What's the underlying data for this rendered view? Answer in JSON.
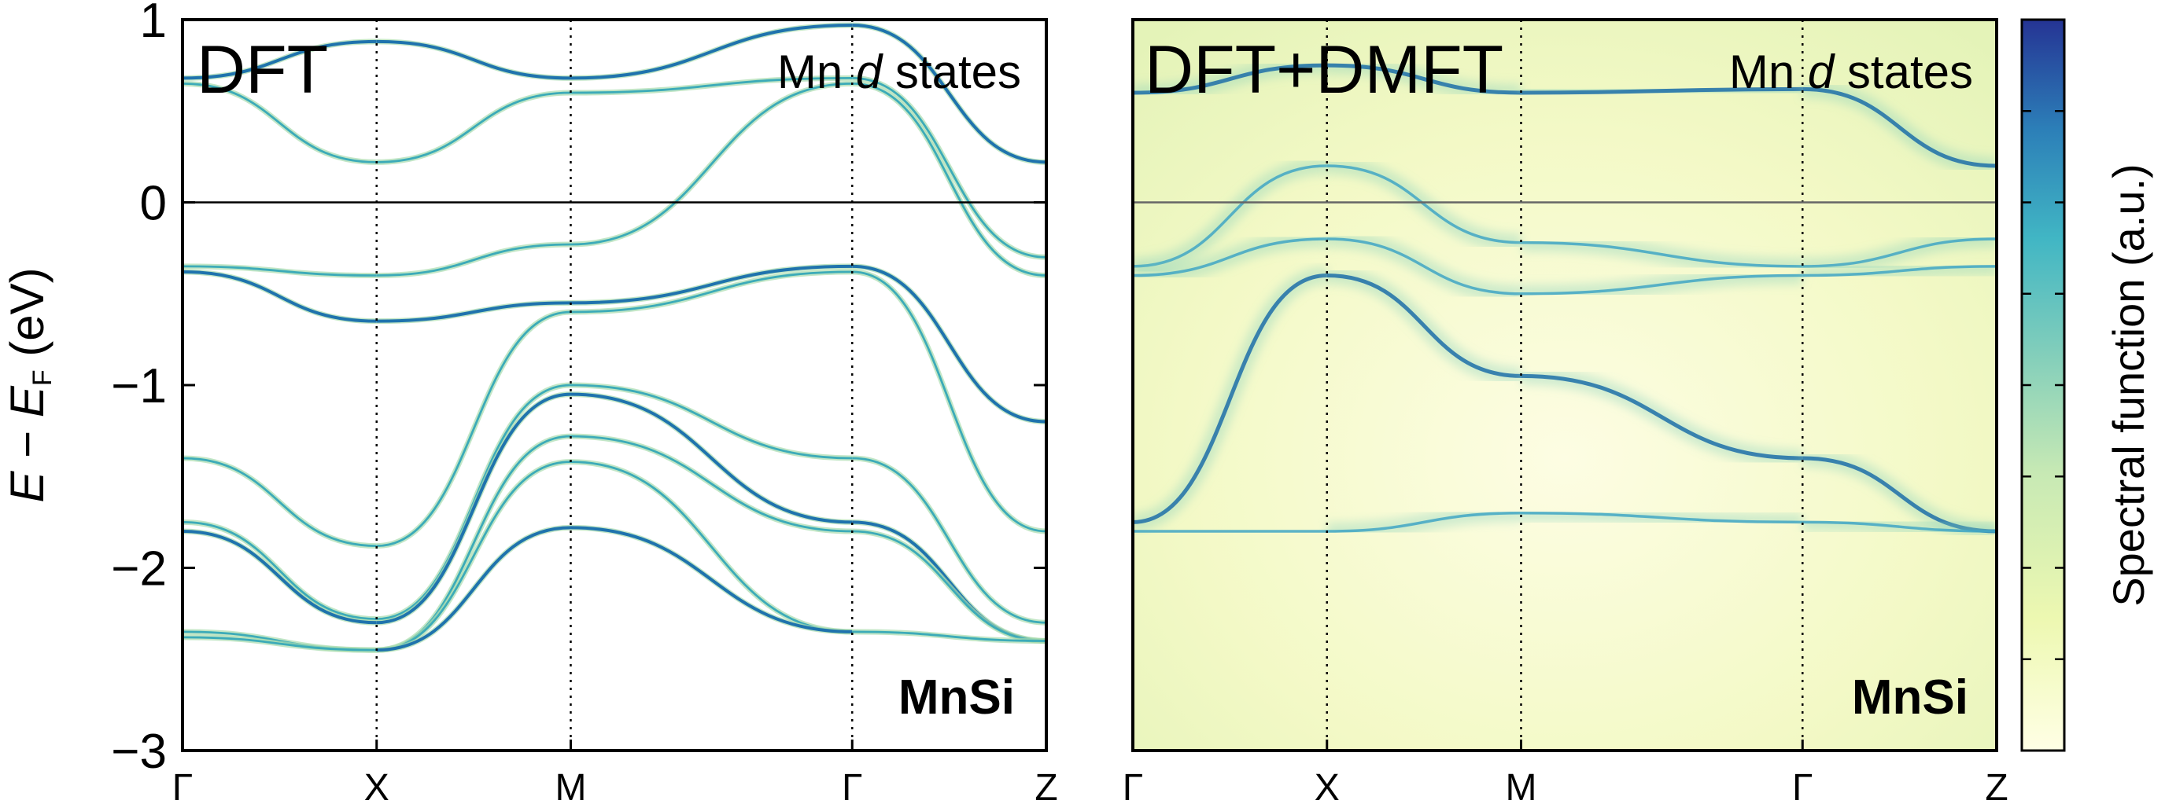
{
  "figure": {
    "ylabel_E": "E",
    "ylabel_minus": " − ",
    "ylabel_E2": "E",
    "ylabel_sub": "F",
    "ylabel_unit": " (eV)",
    "colorbar_label": "Spectral function (a.u.)",
    "colors": {
      "low": "#ffffe5",
      "mid": "#7fcdbb",
      "mid2": "#41b6c4",
      "high": "#225ea8",
      "max": "#253494",
      "axis": "#000000"
    }
  },
  "chart_data": [
    {
      "type": "heatmap",
      "panel": "left",
      "method_label": "DFT",
      "states_prefix": "Mn ",
      "states_italic": "d",
      "states_suffix": " states",
      "material_label": "MnSi",
      "ylim": [
        -3,
        1
      ],
      "yticks": [
        "1",
        "0",
        "−1",
        "−2",
        "−3"
      ],
      "ytick_values": [
        1,
        0,
        -1,
        -2,
        -3
      ],
      "x_ticks": [
        "Γ",
        "X",
        "M",
        "Γ",
        "Z"
      ],
      "x_tick_positions": [
        0,
        1,
        2,
        3.45,
        4.45
      ],
      "grid": "vertical dotted lines at high-symmetry points; solid line at E_F = 0",
      "band_energies_at_high_symmetry_points": {
        "Γ": [
          0.68,
          0.65,
          -0.35,
          -0.38,
          -1.4,
          -1.75,
          -1.8,
          -2.35,
          -2.38
        ],
        "X": [
          0.88,
          0.22,
          -0.4,
          -0.65,
          -1.88,
          -2.28,
          -2.3,
          -2.45
        ],
        "M": [
          0.68,
          0.6,
          -0.23,
          -0.55,
          -0.6,
          -1.0,
          -1.05,
          -1.28,
          -1.42,
          -1.78
        ],
        "Γ'": [
          0.97,
          0.68,
          0.65,
          -0.35,
          -0.38,
          -1.4,
          -1.75,
          -1.8,
          -2.35
        ],
        "Z": [
          0.22,
          -0.3,
          -0.4,
          -1.2,
          -1.8,
          -2.3,
          -2.4
        ]
      }
    },
    {
      "type": "heatmap",
      "panel": "right",
      "method_label": "DFT+DMFT",
      "states_prefix": "Mn ",
      "states_italic": "d",
      "states_suffix": " states",
      "material_label": "MnSi",
      "ylim": [
        -3,
        1
      ],
      "x_ticks": [
        "Γ",
        "X",
        "M",
        "Γ",
        "Z"
      ],
      "x_tick_positions": [
        0,
        1,
        2,
        3.45,
        4.45
      ],
      "grid": "vertical dotted lines at high-symmetry points; solid line at E_F = 0",
      "band_energies_at_high_symmetry_points": {
        "Γ": [
          0.6,
          -0.35,
          -0.4,
          -1.75,
          -1.8
        ],
        "X": [
          0.75,
          0.2,
          -0.2,
          -0.4,
          -1.8
        ],
        "M": [
          0.6,
          -0.22,
          -0.5,
          -0.95,
          -1.7
        ],
        "Γ'": [
          0.62,
          -0.35,
          -0.4,
          -1.4,
          -1.75
        ],
        "Z": [
          0.2,
          -0.2,
          -0.35,
          -1.8
        ]
      }
    }
  ],
  "colorbar": {
    "type": "colorbar",
    "label": "Spectral function (a.u.)",
    "ticks_labeled": false,
    "range": [
      "low",
      "high"
    ]
  }
}
